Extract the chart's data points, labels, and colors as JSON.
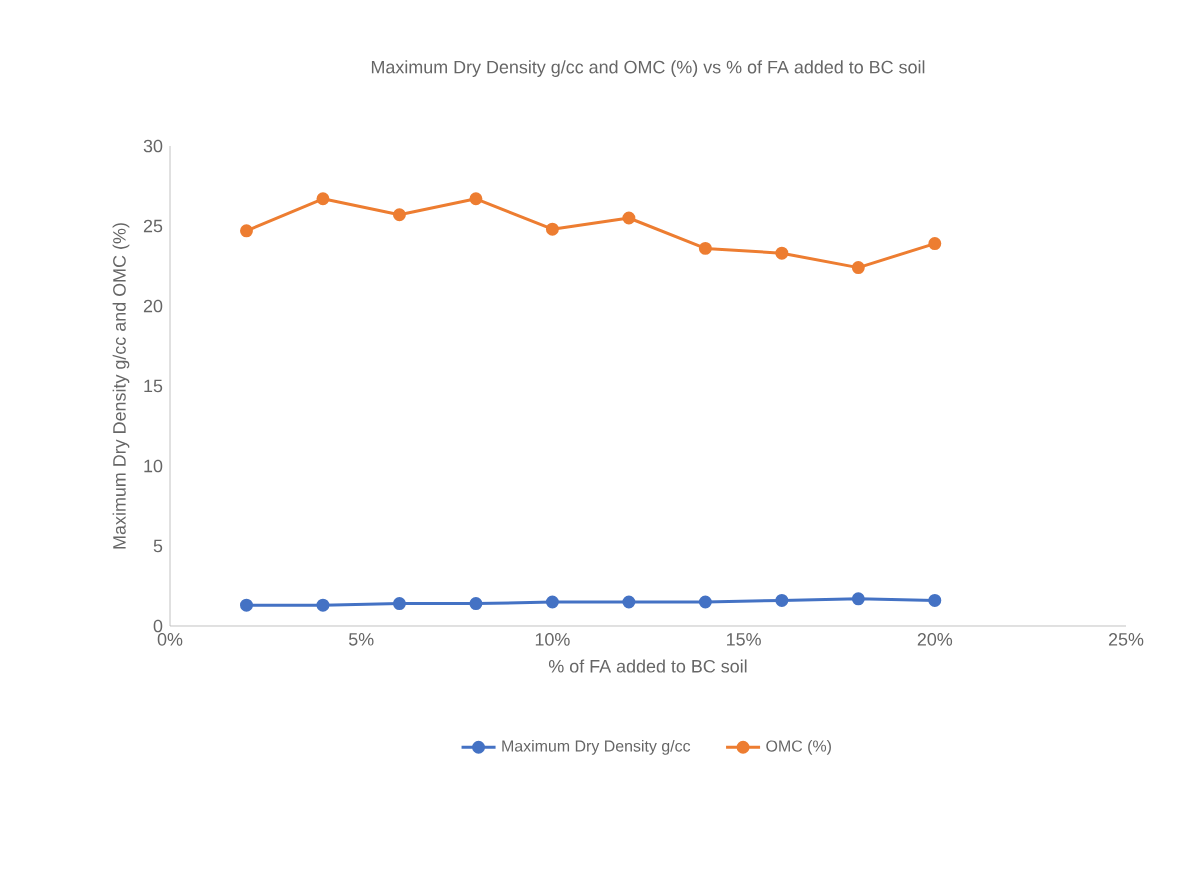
{
  "chart_data": {
    "type": "line",
    "title": "Maximum Dry Density g/cc and OMC (%) vs % of FA added to BC soil",
    "xlabel": "% of FA added to BC soil",
    "ylabel": "Maximum Dry Density g/cc and OMC (%)",
    "x": [
      0.02,
      0.04,
      0.06,
      0.08,
      0.1,
      0.12,
      0.14,
      0.16,
      0.18,
      0.2
    ],
    "series": [
      {
        "name": "Maximum Dry Density g/cc",
        "color": "#4472c4",
        "values": [
          1.3,
          1.3,
          1.4,
          1.4,
          1.5,
          1.5,
          1.5,
          1.6,
          1.7,
          1.6
        ]
      },
      {
        "name": "OMC (%)",
        "color": "#ed7d31",
        "values": [
          24.7,
          26.7,
          25.7,
          26.7,
          24.8,
          25.5,
          23.6,
          23.3,
          22.4,
          23.9
        ]
      }
    ],
    "xlim": [
      0,
      0.25
    ],
    "xticks": [
      {
        "value": 0,
        "label": "0%"
      },
      {
        "value": 0.05,
        "label": "5%"
      },
      {
        "value": 0.1,
        "label": "10%"
      },
      {
        "value": 0.15,
        "label": "15%"
      },
      {
        "value": 0.2,
        "label": "20%"
      },
      {
        "value": 0.25,
        "label": "25%"
      }
    ],
    "ylim": [
      0,
      30
    ],
    "yticks": [
      0,
      5,
      10,
      15,
      20,
      25,
      30
    ],
    "legend": "bottom",
    "marker": "circle",
    "line_style": "solid"
  }
}
